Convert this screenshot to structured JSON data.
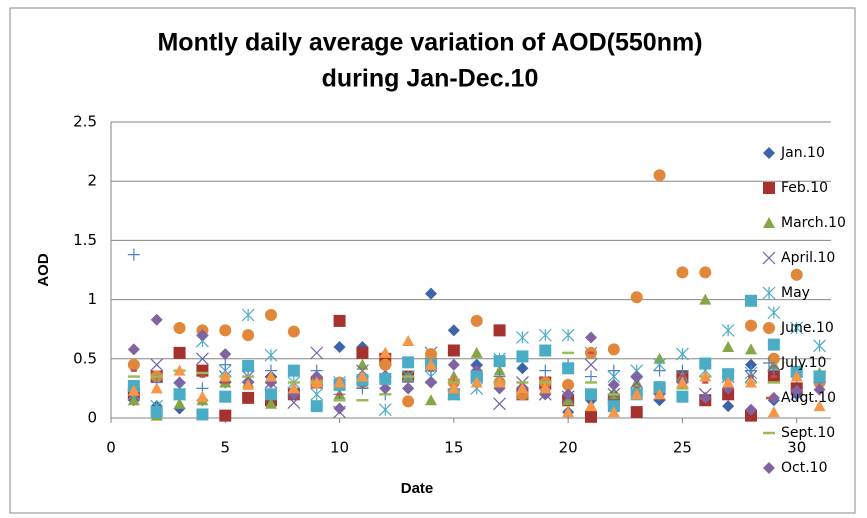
{
  "chart_data": {
    "type": "scatter",
    "title": "Montly daily average variation of AOD(550nm)",
    "subtitle": "during Jan-Dec.10",
    "x_label": "Date",
    "y_label": "AOD",
    "xlim": [
      0,
      31.5
    ],
    "ylim": [
      0,
      2.5
    ],
    "xticks": [
      0,
      5,
      10,
      15,
      20,
      25,
      30
    ],
    "yticks": [
      0,
      0.5,
      1,
      1.5,
      2,
      2.5
    ],
    "grid": true,
    "legend": "right",
    "x": [
      1,
      2,
      3,
      4,
      5,
      6,
      7,
      8,
      9,
      10,
      11,
      12,
      13,
      14,
      15,
      16,
      17,
      18,
      19,
      20,
      21,
      22,
      23,
      24,
      25,
      26,
      27,
      28,
      29,
      30,
      31
    ],
    "series": [
      {
        "name": "Jan.10",
        "color": "#3d63a8",
        "marker": "diamond",
        "values": [
          0.15,
          0.1,
          0.08,
          0.15,
          0.3,
          0.3,
          0.35,
          0.2,
          0.3,
          0.6,
          0.6,
          0.45,
          0.25,
          1.05,
          0.74,
          0.45,
          0.3,
          0.42,
          0.2,
          0.05,
          0.15,
          0.2,
          0.35,
          0.15,
          0.3,
          0.15,
          0.1,
          0.45,
          0.15,
          0.2,
          0.35
        ]
      },
      {
        "name": "Feb.10",
        "color": "#a5322f",
        "marker": "square",
        "values": [
          0.2,
          0.35,
          0.55,
          0.4,
          0.02,
          0.17,
          0.15,
          0.2,
          0.3,
          0.82,
          0.55,
          0.5,
          0.35,
          0.45,
          0.57,
          0.35,
          0.74,
          0.2,
          0.3,
          0.15,
          0.01,
          0.15,
          0.05,
          0.25,
          0.35,
          0.15,
          0.2,
          0.02,
          0.35,
          0.25,
          0.35
        ]
      },
      {
        "name": "March.10",
        "color": "#86a544",
        "marker": "triangle",
        "values": [
          0.15,
          0.02,
          0.12,
          0.15,
          0.3,
          0.3,
          0.12,
          0.25,
          0.3,
          0.2,
          0.45,
          0.35,
          0.35,
          0.15,
          0.35,
          0.55,
          0.4,
          0.2,
          0.25,
          0.15,
          0.1,
          0.2,
          0.3,
          0.5,
          0.35,
          1.0,
          0.6,
          0.58,
          0.45,
          0.35,
          0.38
        ]
      },
      {
        "name": "April.10",
        "color": "#6f64a6",
        "marker": "x",
        "values": [
          0.2,
          0.45,
          0.2,
          0.5,
          0.35,
          0.35,
          0.3,
          0.13,
          0.55,
          0.05,
          0.4,
          0.4,
          0.35,
          0.55,
          0.2,
          0.4,
          0.12,
          0.3,
          0.2,
          0.18,
          0.45,
          0.2,
          0.3,
          0.2,
          0.35,
          0.2,
          0.35,
          0.35,
          0.45,
          0.2,
          0.35
        ]
      },
      {
        "name": "May",
        "color": "#4bacc6",
        "marker": "star",
        "values": [
          0.2,
          0.1,
          0.25,
          0.65,
          0.4,
          0.87,
          0.53,
          0.3,
          0.2,
          0.3,
          0.3,
          0.07,
          0.35,
          0.35,
          0.28,
          0.25,
          0.5,
          0.68,
          0.7,
          0.7,
          0.55,
          0.35,
          0.4,
          0.45,
          0.54,
          0.4,
          0.74,
          0.38,
          0.89,
          0.76,
          0.61
        ]
      },
      {
        "name": "June.10",
        "color": "#e0873a",
        "marker": "circle",
        "values": [
          0.45,
          0.35,
          0.76,
          0.74,
          0.74,
          0.7,
          0.87,
          0.73,
          0.3,
          0.3,
          0.3,
          0.45,
          0.14,
          0.54,
          0.3,
          0.82,
          0.3,
          0.2,
          0.3,
          0.28,
          0.55,
          0.58,
          1.02,
          2.05,
          1.23,
          1.23,
          0.35,
          0.78,
          0.5,
          1.21,
          0.3
        ]
      },
      {
        "name": "July.10",
        "color": "#4f81bd",
        "marker": "plus",
        "values": [
          1.38,
          0.3,
          0.3,
          0.25,
          0.45,
          0.4,
          0.4,
          0.25,
          0.4,
          0.2,
          0.25,
          0.2,
          0.35,
          0.4,
          0.3,
          0.35,
          0.35,
          0.25,
          0.4,
          0.45,
          0.35,
          0.4,
          0.35,
          0.4,
          0.4,
          0.35,
          0.35,
          0.4,
          0.4,
          0.35,
          0.3
        ]
      },
      {
        "name": "Augt.10",
        "color": "#c0504d",
        "marker": "dash",
        "values": [
          0.4,
          0.35,
          0.4,
          0.35,
          0.3,
          0.3,
          0.3,
          0.2,
          0.3,
          0.2,
          0.3,
          0.55,
          0.35,
          0.4,
          0.3,
          0.3,
          0.25,
          0.25,
          0.3,
          0.2,
          0.55,
          0.2,
          0.25,
          0.3,
          0.35,
          0.3,
          0.3,
          0.35,
          0.35,
          0.35,
          0.35
        ]
      },
      {
        "name": "Sept.10",
        "color": "#9bbb59",
        "marker": "longdash",
        "values": [
          0.35,
          0.35,
          0.4,
          0.38,
          0.35,
          0.35,
          0.3,
          0.3,
          0.3,
          0.15,
          0.15,
          0.2,
          0.35,
          0.3,
          0.3,
          0.35,
          0.3,
          0.3,
          0.3,
          0.55,
          0.3,
          0.2,
          0.2,
          0.25,
          0.25,
          0.35,
          0.4,
          0.3,
          0.3,
          0.4,
          0.38
        ]
      },
      {
        "name": "Oct.10",
        "color": "#8064a2",
        "marker": "diamond",
        "values": [
          0.58,
          0.83,
          0.3,
          0.7,
          0.54,
          0.3,
          0.3,
          0.2,
          0.35,
          0.08,
          0.3,
          0.25,
          0.25,
          0.3,
          0.45,
          0.4,
          0.25,
          0.25,
          0.2,
          0.2,
          0.68,
          0.28,
          0.35,
          0.2,
          0.3,
          0.17,
          0.25,
          0.07,
          0.17,
          0.23,
          0.24
        ]
      },
      {
        "color": "#4bacc6",
        "marker": "square",
        "values": [
          0.27,
          0.05,
          0.2,
          0.03,
          0.18,
          0.44,
          0.2,
          0.4,
          0.1,
          0.28,
          0.32,
          0.33,
          0.47,
          0.45,
          0.2,
          0.35,
          0.48,
          0.52,
          0.57,
          0.42,
          0.2,
          0.1,
          0.2,
          0.26,
          0.18,
          0.46,
          0.37,
          0.99,
          0.62,
          0.39,
          0.35
        ]
      },
      {
        "color": "#f79646",
        "marker": "triangle",
        "values": [
          0.23,
          0.25,
          0.4,
          0.18,
          0.35,
          0.28,
          0.35,
          0.25,
          0.3,
          0.3,
          0.35,
          0.55,
          0.65,
          0.45,
          0.25,
          0.3,
          0.3,
          0.25,
          0.25,
          0.05,
          0.1,
          0.05,
          0.2,
          0.2,
          0.3,
          0.35,
          0.3,
          0.3,
          0.05,
          0.35,
          0.1
        ]
      }
    ]
  }
}
